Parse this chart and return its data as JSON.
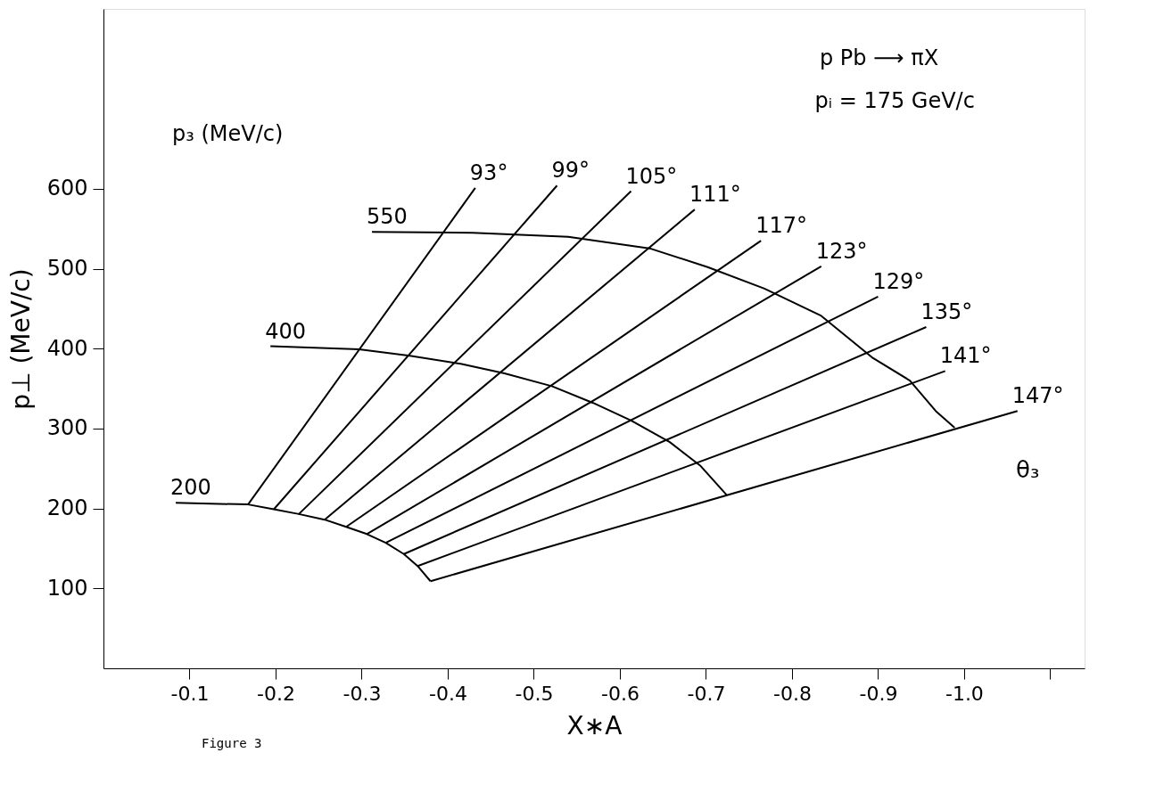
{
  "chart_data": {
    "type": "line",
    "xlabel": "X∗A",
    "ylabel": "p⊥ (MeV/c)",
    "annotations": [
      "p₃ (MeV/c)",
      "θ₃",
      "p Pb ⟶ πX",
      "pᵢ = 175 GeV/c",
      "Figure 3"
    ],
    "xlim": [
      0,
      -1.14
    ],
    "ylim": [
      0,
      825
    ],
    "xticks": [
      -0.1,
      -0.2,
      -0.3,
      -0.4,
      -0.5,
      -0.6,
      -0.7,
      -0.8,
      -0.9,
      {
        "value": -1.0,
        "label": "-1.0"
      },
      {
        "value": -1.1,
        "label": null
      }
    ],
    "yticks": [
      100,
      200,
      300,
      400,
      500,
      600
    ],
    "grid": false,
    "legend": false,
    "line_style": "solid",
    "series": [
      {
        "name": "200",
        "color": "#000000",
        "x": [
          -0.084,
          -0.168,
          -0.198,
          -0.227,
          -0.257,
          -0.282,
          -0.306,
          -0.328,
          -0.349,
          -0.365,
          -0.38
        ],
        "values": [
          207,
          205,
          199,
          193,
          186,
          177,
          168,
          157,
          143,
          128,
          109
        ]
      },
      {
        "name": "400",
        "color": "#000000",
        "x": [
          -0.194,
          -0.297,
          -0.356,
          -0.415,
          -0.466,
          -0.521,
          -0.569,
          -0.613,
          -0.658,
          -0.694,
          -0.724
        ],
        "values": [
          403,
          399,
          391,
          381,
          369,
          353,
          332,
          310,
          283,
          253,
          217
        ]
      },
      {
        "name": "550",
        "color": "#000000",
        "x": [
          -0.312,
          -0.429,
          -0.54,
          -0.636,
          -0.702,
          -0.768,
          -0.834,
          -0.893,
          -0.937,
          -0.967,
          -0.989
        ],
        "values": [
          546,
          545,
          540,
          525,
          502,
          475,
          441,
          389,
          360,
          322,
          301
        ]
      },
      {
        "name": "93°",
        "color": "#000000",
        "x": [
          -0.432,
          -0.168
        ],
        "values": [
          601,
          205
        ]
      },
      {
        "name": "99°",
        "color": "#000000",
        "x": [
          -0.527,
          -0.198
        ],
        "values": [
          604,
          199
        ]
      },
      {
        "name": "105°",
        "color": "#000000",
        "x": [
          -0.613,
          -0.227
        ],
        "values": [
          597,
          193
        ]
      },
      {
        "name": "111°",
        "color": "#000000",
        "x": [
          -0.687,
          -0.257
        ],
        "values": [
          574,
          186
        ]
      },
      {
        "name": "117°",
        "color": "#000000",
        "x": [
          -0.764,
          -0.282
        ],
        "values": [
          535,
          177
        ]
      },
      {
        "name": "123°",
        "color": "#000000",
        "x": [
          -0.834,
          -0.306
        ],
        "values": [
          503,
          168
        ]
      },
      {
        "name": "129°",
        "color": "#000000",
        "x": [
          -0.9,
          -0.328
        ],
        "values": [
          465,
          157
        ]
      },
      {
        "name": "135°",
        "color": "#000000",
        "x": [
          -0.956,
          -0.349
        ],
        "values": [
          427,
          143
        ]
      },
      {
        "name": "141°",
        "color": "#000000",
        "x": [
          -0.978,
          -0.365
        ],
        "values": [
          372,
          128
        ]
      },
      {
        "name": "147°",
        "color": "#000000",
        "x": [
          -1.062,
          -0.38
        ],
        "values": [
          322,
          109
        ]
      }
    ]
  }
}
